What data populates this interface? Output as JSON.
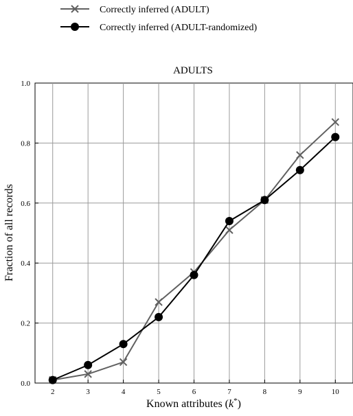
{
  "chart_data": {
    "type": "line",
    "title": "ADULTS",
    "xlabel": "Known attributes (k*)",
    "ylabel": "Fraction of all records",
    "x": [
      2,
      3,
      4,
      5,
      6,
      7,
      8,
      9,
      10
    ],
    "xlim": [
      1.5,
      10.5
    ],
    "ylim": [
      0.0,
      1.0
    ],
    "yticks": [
      "0.0",
      "0.2",
      "0.4",
      "0.6",
      "0.8",
      "1.0"
    ],
    "grid": true,
    "legend_position": "top-left, above plot",
    "series": [
      {
        "name": "Correctly inferred (ADULT)",
        "marker": "x",
        "color": "#606060",
        "values": [
          0.01,
          0.03,
          0.07,
          0.27,
          0.37,
          0.51,
          0.61,
          0.76,
          0.87
        ]
      },
      {
        "name": "Correctly inferred (ADULT-randomized)",
        "marker": "circle",
        "color": "#000000",
        "values": [
          0.01,
          0.06,
          0.13,
          0.22,
          0.36,
          0.54,
          0.61,
          0.71,
          0.82
        ]
      }
    ]
  }
}
